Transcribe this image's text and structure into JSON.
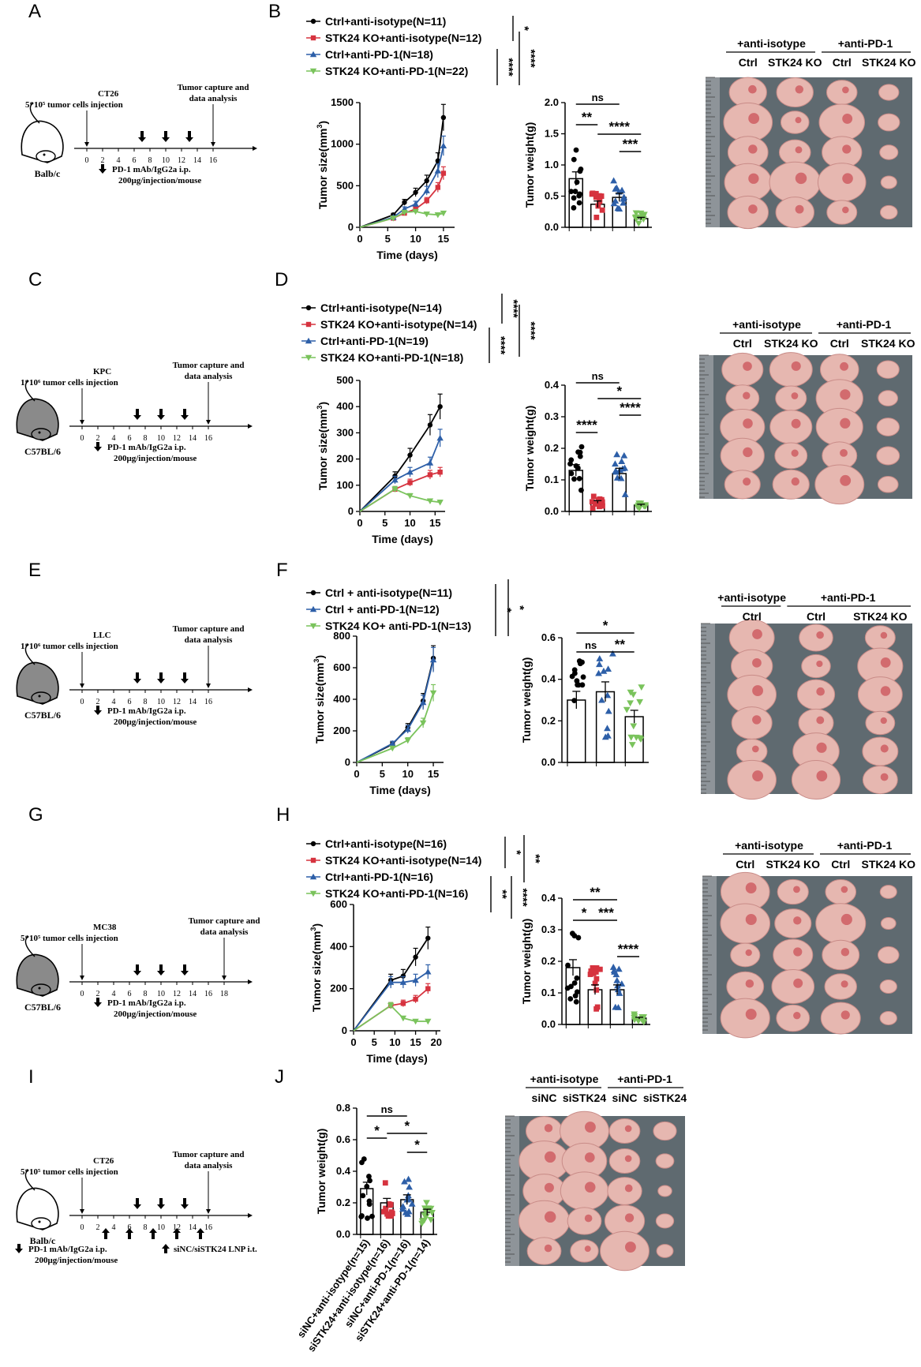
{
  "colors": {
    "ctrl_iso": "#000000",
    "ko_iso": "#d6333f",
    "ctrl_pd1": "#2d5fa8",
    "ko_pd1": "#7ac35c",
    "photo_bg": "#5f6a70",
    "tumor": "#e6b7b0"
  },
  "units_superscript": "3",
  "panels": [
    {
      "letter": "A",
      "schematic": {
        "mouse": "white",
        "cell_line": "CT26",
        "injection": "5*10⁵ tumor cells injection",
        "capture": [
          "Tumor capture and",
          "data analysis"
        ],
        "strain": "Balb/c",
        "ticks": [
          "0",
          "2",
          "4",
          "6",
          "8",
          "10",
          "12",
          "14",
          "16"
        ],
        "drug_days": [
          7,
          10,
          13
        ],
        "drug_note": [
          "PD-1 mAb/IgG2a i.p.",
          "200μg/injection/mouse"
        ]
      },
      "letter2": "B",
      "legend": [
        "Ctrl+anti-isotype(N=11)",
        "STK24 KO+anti-isotype(N=12)",
        "Ctrl+anti-PD-1(N=18)",
        "STK24 KO+anti-PD-1(N=22)"
      ],
      "legend_sig": [
        "*",
        "****",
        "****"
      ],
      "growth": {
        "xlabel": "Time (days)",
        "ylabel": "Tumor size(mm",
        "xticks": [
          "0",
          "5",
          "10",
          "15"
        ],
        "yticks": [
          "0",
          "500",
          "1000",
          "1500"
        ],
        "xmax": 17,
        "ymax": 1500,
        "series": [
          {
            "name": "Ctrl+anti-isotype",
            "x": [
              0,
              6,
              8,
              10,
              12,
              14,
              15
            ],
            "y": [
              0,
              150,
              300,
              420,
              560,
              800,
              1320
            ]
          },
          {
            "name": "STK24 KO+anti-isotype",
            "x": [
              0,
              6,
              8,
              10,
              12,
              14,
              15
            ],
            "y": [
              0,
              110,
              170,
              220,
              320,
              480,
              650
            ]
          },
          {
            "name": "Ctrl+anti-PD-1",
            "x": [
              0,
              6,
              8,
              10,
              12,
              14,
              15
            ],
            "y": [
              0,
              120,
              220,
              280,
              440,
              680,
              980
            ]
          },
          {
            "name": "STK24 KO+anti-PD-1",
            "x": [
              0,
              6,
              8,
              10,
              12,
              14,
              15
            ],
            "y": [
              0,
              110,
              180,
              190,
              160,
              150,
              170
            ]
          }
        ]
      },
      "weight": {
        "ylabel": "Tumor weight(g)",
        "yticks": [
          "0.0",
          "0.5",
          "1.0",
          "1.5",
          "2.0"
        ],
        "ymax": 2.0,
        "means": [
          0.78,
          0.37,
          0.48,
          0.14
        ],
        "sig": [
          "ns",
          "**",
          "****",
          "***"
        ]
      },
      "photo": {
        "headers": [
          "+anti-isotype",
          "+anti-PD-1"
        ],
        "cols": [
          "Ctrl",
          "STK24 KO",
          "Ctrl",
          "STK24 KO"
        ],
        "rows": 5
      }
    },
    {
      "letter": "C",
      "schematic": {
        "mouse": "gray",
        "cell_line": "KPC",
        "injection": "1*10⁶ tumor cells injection",
        "capture": [
          "Tumor capture and",
          "data analysis"
        ],
        "strain": "C57BL/6",
        "ticks": [
          "0",
          "2",
          "4",
          "6",
          "8",
          "10",
          "12",
          "14",
          "16"
        ],
        "drug_days": [
          7,
          10,
          13
        ],
        "drug_note": [
          "PD-1 mAb/IgG2a i.p.",
          "200μg/injection/mouse"
        ]
      },
      "letter2": "D",
      "legend": [
        "Ctrl+anti-isotype(N=14)",
        "STK24 KO+anti-isotype(N=14)",
        "Ctrl+anti-PD-1(N=19)",
        "STK24 KO+anti-PD-1(N=18)"
      ],
      "legend_sig": [
        "****",
        "****",
        "****"
      ],
      "growth": {
        "xlabel": "Time (days)",
        "ylabel": "Tumor size(mm",
        "xticks": [
          "0",
          "5",
          "10",
          "15"
        ],
        "yticks": [
          "0",
          "100",
          "200",
          "300",
          "400",
          "500"
        ],
        "xmax": 17,
        "ymax": 500,
        "series": [
          {
            "name": "Ctrl+anti-isotype",
            "x": [
              0,
              7,
              10,
              14,
              16
            ],
            "y": [
              0,
              135,
              215,
              330,
              400
            ]
          },
          {
            "name": "STK24 KO+anti-isotype",
            "x": [
              0,
              7,
              10,
              14,
              16
            ],
            "y": [
              0,
              85,
              110,
              140,
              150
            ]
          },
          {
            "name": "Ctrl+anti-PD-1",
            "x": [
              0,
              7,
              10,
              14,
              16
            ],
            "y": [
              0,
              120,
              150,
              185,
              280
            ]
          },
          {
            "name": "STK24 KO+anti-PD-1",
            "x": [
              0,
              7,
              10,
              14,
              16
            ],
            "y": [
              0,
              85,
              60,
              40,
              35
            ]
          }
        ]
      },
      "weight": {
        "ylabel": "Tumor weight(g)",
        "yticks": [
          "0.0",
          "0.1",
          "0.2",
          "0.3",
          "0.4"
        ],
        "ymax": 0.4,
        "means": [
          0.13,
          0.03,
          0.12,
          0.02
        ],
        "sig": [
          "ns",
          "****",
          "*",
          "****"
        ]
      },
      "photo": {
        "headers": [
          "+anti-isotype",
          "+anti-PD-1"
        ],
        "cols": [
          "Ctrl",
          "STK24 KO",
          "Ctrl",
          "STK24 KO"
        ],
        "rows": 5
      }
    },
    {
      "letter": "E",
      "schematic": {
        "mouse": "gray",
        "cell_line": "LLC",
        "injection": "1*10⁶ tumor cells injection",
        "capture": [
          "Tumor capture and",
          "data analysis"
        ],
        "strain": "C57BL/6",
        "ticks": [
          "0",
          "2",
          "4",
          "6",
          "8",
          "10",
          "12",
          "14",
          "16"
        ],
        "drug_days": [
          7,
          10,
          13
        ],
        "drug_note": [
          "PD-1 mAb/IgG2a i.p.",
          "200μg/injection/mouse"
        ]
      },
      "letter2": "F",
      "legend": [
        "Ctrl + anti-isotype(N=11)",
        "Ctrl + anti-PD-1(N=12)",
        "STK24 KO+ anti-PD-1(N=13)"
      ],
      "legend_sig": [
        "*",
        "*"
      ],
      "growth": {
        "xlabel": "Time (days)",
        "ylabel": "Tumor size(mm",
        "xticks": [
          "0",
          "5",
          "10",
          "15"
        ],
        "yticks": [
          "0",
          "200",
          "400",
          "600",
          "800"
        ],
        "xmax": 17,
        "ymax": 800,
        "series": [
          {
            "name": "Ctrl + anti-isotype",
            "x": [
              0,
              7,
              10,
              13,
              15
            ],
            "y": [
              0,
              115,
              220,
              390,
              660
            ]
          },
          {
            "name": "Ctrl + anti-PD-1",
            "x": [
              0,
              7,
              10,
              13,
              15
            ],
            "y": [
              0,
              120,
              210,
              380,
              650
            ]
          },
          {
            "name": "STK24 KO+ anti-PD-1",
            "x": [
              0,
              7,
              10,
              13,
              15
            ],
            "y": [
              0,
              90,
              140,
              250,
              440
            ]
          }
        ]
      },
      "weight": {
        "ylabel": "Tumor weight(g)",
        "yticks": [
          "0.0",
          "0.2",
          "0.4",
          "0.6"
        ],
        "ymax": 0.6,
        "means": [
          0.3,
          0.34,
          0.22
        ],
        "sig": [
          "*",
          "ns",
          "**"
        ]
      },
      "photo": {
        "headers": [
          "+anti-isotype",
          "+anti-PD-1"
        ],
        "cols": [
          "Ctrl",
          "Ctrl",
          "STK24 KO"
        ],
        "rows": 6
      }
    },
    {
      "letter": "G",
      "schematic": {
        "mouse": "gray",
        "cell_line": "MC38",
        "injection": "5*10⁵ tumor cells injection",
        "capture": [
          "Tumor capture and",
          "data analysis"
        ],
        "strain": "C57BL/6",
        "ticks": [
          "0",
          "2",
          "4",
          "6",
          "8",
          "10",
          "12",
          "14",
          "16",
          "18"
        ],
        "drug_days": [
          7,
          10,
          13
        ],
        "drug_note": [
          "PD-1 mAb/IgG2a i.p.",
          "200μg/injection/mouse"
        ]
      },
      "letter2": "H",
      "legend": [
        "Ctrl+anti-isotype(N=16)",
        "STK24 KO+anti-isotype(N=14)",
        "Ctrl+anti-PD-1(N=16)",
        "STK24 KO+anti-PD-1(N=16)"
      ],
      "legend_sig": [
        "*",
        "**",
        "****",
        "**"
      ],
      "growth": {
        "xlabel": "Time (days)",
        "ylabel": "Tumor size(mm",
        "xticks": [
          "0",
          "5",
          "10",
          "15",
          "20"
        ],
        "yticks": [
          "0",
          "200",
          "400",
          "600"
        ],
        "xmax": 21,
        "ymax": 600,
        "series": [
          {
            "name": "Ctrl+anti-isotype",
            "x": [
              0,
              9,
              12,
              15,
              18
            ],
            "y": [
              0,
              240,
              260,
              350,
              440
            ]
          },
          {
            "name": "STK24 KO+anti-isotype",
            "x": [
              0,
              9,
              12,
              15,
              18
            ],
            "y": [
              0,
              120,
              130,
              150,
              200
            ]
          },
          {
            "name": "Ctrl+anti-PD-1",
            "x": [
              0,
              9,
              12,
              15,
              18
            ],
            "y": [
              0,
              230,
              230,
              240,
              280
            ]
          },
          {
            "name": "STK24 KO+anti-PD-1",
            "x": [
              0,
              9,
              12,
              15,
              18
            ],
            "y": [
              0,
              120,
              60,
              45,
              45
            ]
          }
        ]
      },
      "weight": {
        "ylabel": "Tumor weight(g)",
        "yticks": [
          "0.0",
          "0.1",
          "0.2",
          "0.3",
          "0.4"
        ],
        "ymax": 0.4,
        "means": [
          0.18,
          0.11,
          0.11,
          0.02
        ],
        "sig": [
          "**",
          "*",
          "***",
          "****"
        ]
      },
      "photo": {
        "headers": [
          "+anti-isotype",
          "+anti-PD-1"
        ],
        "cols": [
          "Ctrl",
          "STK24 KO",
          "Ctrl",
          "STK24 KO"
        ],
        "rows": 5
      }
    },
    {
      "letter": "I",
      "schematic": {
        "mouse": "white",
        "cell_line": "CT26",
        "injection": "5*10⁵ tumor cells injection",
        "capture": [
          "Tumor capture and",
          "data analysis"
        ],
        "strain": "Balb/c",
        "ticks": [
          "0",
          "2",
          "4",
          "6",
          "8",
          "10",
          "12",
          "14",
          "16"
        ],
        "drug_days": [
          7,
          10,
          13
        ],
        "drug_note": [
          "PD-1 mAb/IgG2a i.p.",
          "200μg/injection/mouse"
        ],
        "si_note": "siNC/siSTK24 LNP i.t.",
        "si_days": [
          3,
          6,
          9,
          12,
          15
        ]
      },
      "letter2": "J",
      "weight": {
        "ylabel": "Tumor weight(g)",
        "yticks": [
          "0.0",
          "0.2",
          "0.4",
          "0.6",
          "0.8"
        ],
        "ymax": 0.8,
        "means": [
          0.29,
          0.2,
          0.22,
          0.14
        ],
        "sig": [
          "ns",
          "*",
          "*",
          "*"
        ],
        "xcats": [
          "siNC+anti-isotype(n=15)",
          "siSTK24+anti-isotype(n=16)",
          "siNC+anti-PD-1(n=16)",
          "siSTK24+anti-PD-1(n=14)"
        ]
      },
      "photo": {
        "headers": [
          "+anti-isotype",
          "+anti-PD-1"
        ],
        "cols": [
          "siNC",
          "siSTK24",
          "siNC",
          "siSTK24"
        ],
        "rows": 5
      }
    }
  ]
}
